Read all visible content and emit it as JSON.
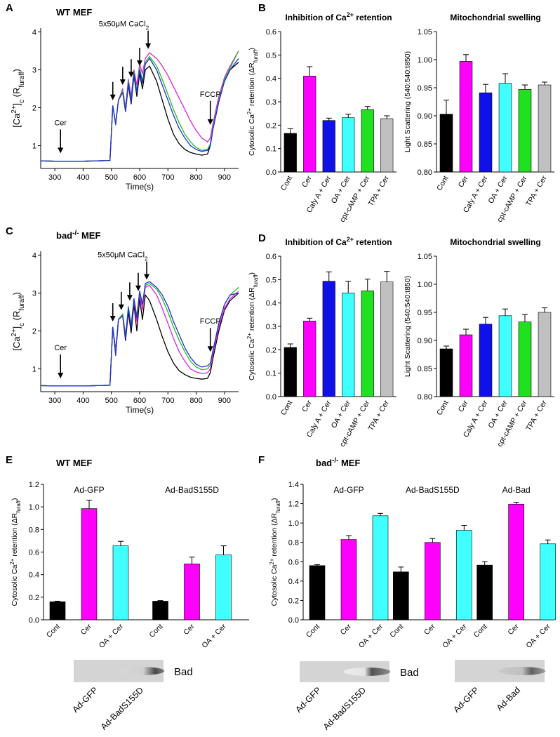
{
  "chart_data": [
    {
      "type": "line",
      "panel": "A",
      "title": "WT MEF",
      "x": [
        250,
        300,
        350,
        400,
        450,
        495,
        505,
        515,
        525,
        540,
        550,
        560,
        570,
        580,
        590,
        600,
        610,
        620,
        635,
        660,
        680,
        700,
        720,
        740,
        760,
        780,
        800,
        820,
        840,
        850,
        860,
        880,
        900,
        920,
        950
      ],
      "series": [
        {
          "color": "#000000",
          "values": [
            0.6,
            0.59,
            0.59,
            0.59,
            0.6,
            0.61,
            2.05,
            1.6,
            2.2,
            2.45,
            1.9,
            2.6,
            2.1,
            2.85,
            2.3,
            2.9,
            2.5,
            3.0,
            3.1,
            2.7,
            2.2,
            1.7,
            1.3,
            1.05,
            0.9,
            0.82,
            0.78,
            0.75,
            0.78,
            1.0,
            1.5,
            2.2,
            2.7,
            3.0,
            3.2
          ]
        },
        {
          "color": "#e020e0",
          "values": [
            0.6,
            0.59,
            0.59,
            0.59,
            0.6,
            0.61,
            2.05,
            1.6,
            2.2,
            2.5,
            2.0,
            2.75,
            2.3,
            3.0,
            2.6,
            3.15,
            2.9,
            3.3,
            3.45,
            3.3,
            3.1,
            2.85,
            2.55,
            2.25,
            1.95,
            1.65,
            1.4,
            1.2,
            1.1,
            1.2,
            1.6,
            2.3,
            2.8,
            3.1,
            3.5
          ]
        },
        {
          "color": "#20c020",
          "values": [
            0.6,
            0.59,
            0.59,
            0.59,
            0.6,
            0.61,
            2.05,
            1.6,
            2.2,
            2.45,
            1.95,
            2.7,
            2.2,
            2.95,
            2.45,
            3.05,
            2.7,
            3.2,
            3.35,
            3.1,
            2.75,
            2.35,
            1.95,
            1.6,
            1.3,
            1.1,
            0.95,
            0.88,
            0.9,
            1.05,
            1.5,
            2.2,
            2.75,
            3.05,
            3.5
          ]
        },
        {
          "color": "#2030d0",
          "values": [
            0.6,
            0.59,
            0.59,
            0.59,
            0.6,
            0.61,
            2.05,
            1.55,
            2.2,
            2.4,
            1.9,
            2.65,
            2.15,
            2.9,
            2.4,
            3.0,
            2.65,
            3.15,
            3.3,
            3.0,
            2.6,
            2.2,
            1.8,
            1.45,
            1.2,
            1.0,
            0.9,
            0.85,
            0.88,
            1.0,
            1.45,
            2.15,
            2.7,
            3.0,
            3.3
          ]
        }
      ],
      "xlim": [
        250,
        950
      ],
      "xticks": [
        300,
        400,
        500,
        600,
        700,
        800,
        900
      ],
      "ylim": [
        0.4,
        4.1
      ],
      "yticks": [
        1,
        2,
        3,
        4
      ],
      "x_label": "Time(s)",
      "y_label": [
        {
          "text": "[Ca"
        },
        {
          "text": "2+",
          "sup": true
        },
        {
          "text": "]"
        },
        {
          "text": "c",
          "sub": true
        },
        {
          "text": " (R"
        },
        {
          "text": "furaff",
          "sub": true
        },
        {
          "text": ")"
        }
      ],
      "annotations": [
        {
          "text": "Cer",
          "points": [
            [
              320,
              0.8
            ]
          ]
        },
        {
          "text": [
            {
              "text": "5x50μM CaCl"
            },
            {
              "text": "2",
              "sub": true
            }
          ],
          "points": [
            [
              505,
              2.2
            ],
            [
              540,
              2.6
            ],
            [
              570,
              2.8
            ],
            [
              600,
              3.1
            ],
            [
              630,
              3.55
            ]
          ]
        },
        {
          "text": "FCCP",
          "points": [
            [
              850,
              1.55
            ]
          ]
        }
      ]
    },
    {
      "type": "bar",
      "panel": "B",
      "title": [
        {
          "text": "Inhibition of Ca"
        },
        {
          "text": "2+",
          "sup": true
        },
        {
          "text": " retention"
        }
      ],
      "categories": [
        "Cont",
        "Cer",
        "Caly A + Cer",
        "OA + Cer",
        "cpt-cAMP + Cer",
        "TPA + Cer"
      ],
      "values": [
        0.165,
        0.41,
        0.22,
        0.232,
        0.267,
        0.228
      ],
      "errors": [
        0.02,
        0.04,
        0.01,
        0.015,
        0.013,
        0.012
      ],
      "colors": [
        "#000000",
        "#ff00ff",
        "#1010e8",
        "#40ffff",
        "#20e020",
        "#c0c0c0"
      ],
      "ylim": [
        0,
        0.6
      ],
      "yticks": [
        {
          "value": 0,
          "label": "0.0"
        },
        0.1,
        0.2,
        0.3,
        0.4,
        0.5,
        0.6
      ],
      "y_label": [
        {
          "text": "Cytosolic Ca"
        },
        {
          "text": "2+",
          "sup": true
        },
        {
          "text": " retention (ΔR"
        },
        {
          "text": "furaff",
          "sub": true
        },
        {
          "text": ")"
        }
      ]
    },
    {
      "type": "bar",
      "title": "Mitochondrial swelling",
      "categories": [
        "Cont",
        "Cer",
        "Caly A + Cer",
        "OA + Cer",
        "cpt-cAMP + Cer",
        "TPA + Cer"
      ],
      "values": [
        0.903,
        0.997,
        0.941,
        0.958,
        0.947,
        0.955
      ],
      "errors": [
        0.025,
        0.012,
        0.015,
        0.017,
        0.008,
        0.005
      ],
      "colors": [
        "#000000",
        "#ff00ff",
        "#1010e8",
        "#40ffff",
        "#20e020",
        "#c0c0c0"
      ],
      "ylim": [
        0.8,
        1.05
      ],
      "yticks": [
        {
          "value": 0.8,
          "label": "0.80"
        },
        0.85,
        {
          "value": 0.9,
          "label": "0.90"
        },
        0.95,
        {
          "value": 1,
          "label": "1.00"
        },
        1.05
      ],
      "y_label": "Light Scattering (540:540:t850)"
    },
    {
      "type": "line",
      "panel": "C",
      "title": [
        {
          "text": "bad"
        },
        {
          "text": "-/-",
          "sup": true
        },
        {
          "text": " MEF"
        }
      ],
      "x": [
        250,
        300,
        350,
        400,
        450,
        495,
        505,
        515,
        525,
        540,
        550,
        560,
        570,
        580,
        590,
        600,
        610,
        620,
        635,
        660,
        680,
        700,
        720,
        740,
        760,
        780,
        800,
        820,
        840,
        850,
        860,
        880,
        900,
        920,
        950
      ],
      "series": [
        {
          "color": "#000000",
          "values": [
            0.56,
            0.55,
            0.55,
            0.55,
            0.56,
            0.57,
            2.1,
            1.5,
            2.3,
            2.4,
            1.75,
            2.5,
            1.95,
            2.7,
            2.0,
            2.85,
            2.3,
            2.95,
            2.8,
            2.3,
            1.85,
            1.45,
            1.15,
            0.95,
            0.85,
            0.78,
            0.75,
            0.73,
            0.75,
            0.9,
            1.3,
            2.0,
            2.55,
            2.8,
            3.0
          ]
        },
        {
          "color": "#e020e0",
          "values": [
            0.56,
            0.55,
            0.55,
            0.55,
            0.56,
            0.57,
            2.1,
            1.45,
            2.3,
            2.45,
            1.9,
            2.6,
            2.1,
            2.8,
            2.25,
            3.0,
            2.55,
            3.15,
            3.2,
            2.95,
            2.6,
            2.2,
            1.8,
            1.45,
            1.2,
            1.0,
            0.92,
            0.88,
            0.9,
            1.0,
            1.4,
            2.1,
            2.6,
            2.85,
            3.05
          ]
        },
        {
          "color": "#20c020",
          "values": [
            0.56,
            0.55,
            0.55,
            0.55,
            0.56,
            0.57,
            2.1,
            1.4,
            2.3,
            2.45,
            1.85,
            2.65,
            2.15,
            2.85,
            2.4,
            3.05,
            2.7,
            3.2,
            3.25,
            3.1,
            2.85,
            2.5,
            2.1,
            1.75,
            1.45,
            1.2,
            1.05,
            0.98,
            1.0,
            1.1,
            1.5,
            2.2,
            2.7,
            2.95,
            3.15
          ]
        },
        {
          "color": "#2030d0",
          "values": [
            0.56,
            0.55,
            0.55,
            0.55,
            0.56,
            0.57,
            2.1,
            1.35,
            2.3,
            2.4,
            1.8,
            2.6,
            2.1,
            2.85,
            2.35,
            3.05,
            2.7,
            3.25,
            3.3,
            3.15,
            2.95,
            2.65,
            2.25,
            1.9,
            1.55,
            1.3,
            1.12,
            1.05,
            1.08,
            1.15,
            1.5,
            2.2,
            2.7,
            2.95,
            3.0
          ]
        }
      ],
      "xlim": [
        250,
        950
      ],
      "xticks": [
        300,
        400,
        500,
        600,
        700,
        800,
        900
      ],
      "ylim": [
        0.4,
        4.1
      ],
      "yticks": [
        1,
        2,
        3,
        4
      ],
      "x_label": "Time(s)",
      "y_label": [
        {
          "text": "[Ca"
        },
        {
          "text": "2+",
          "sup": true
        },
        {
          "text": "]"
        },
        {
          "text": "c",
          "sub": true
        },
        {
          "text": " (R"
        },
        {
          "text": "furaff",
          "sub": true
        },
        {
          "text": ")"
        }
      ],
      "annotations": [
        {
          "text": "Cer",
          "points": [
            [
              320,
              0.75
            ]
          ]
        },
        {
          "text": [
            {
              "text": "5x50μM CaCl"
            },
            {
              "text": "2",
              "sub": true
            }
          ],
          "points": [
            [
              505,
              2.25
            ],
            [
              535,
              2.55
            ],
            [
              565,
              2.8
            ],
            [
              595,
              3.05
            ],
            [
              625,
              3.35
            ]
          ]
        },
        {
          "text": "FCCP",
          "points": [
            [
              850,
              1.45
            ]
          ]
        }
      ]
    },
    {
      "type": "bar",
      "panel": "D",
      "title": [
        {
          "text": "Inhibition of Ca"
        },
        {
          "text": "2+",
          "sup": true
        },
        {
          "text": " retention"
        }
      ],
      "categories": [
        "Cont",
        "Cer",
        "Caly A + Cer",
        "OA + Cer",
        "cpt-cAMP + Cer",
        "TPA + Cer"
      ],
      "values": [
        0.21,
        0.323,
        0.493,
        0.443,
        0.452,
        0.49
      ],
      "errors": [
        0.015,
        0.012,
        0.04,
        0.05,
        0.05,
        0.045
      ],
      "colors": [
        "#000000",
        "#ff00ff",
        "#1010e8",
        "#40ffff",
        "#20e020",
        "#c0c0c0"
      ],
      "ylim": [
        0,
        0.6
      ],
      "yticks": [
        {
          "value": 0,
          "label": "0.0"
        },
        0.1,
        0.2,
        0.3,
        0.4,
        0.5,
        0.6
      ],
      "y_label": [
        {
          "text": "Cytosolic Ca"
        },
        {
          "text": "2+",
          "sup": true
        },
        {
          "text": " retention (ΔR"
        },
        {
          "text": "furaff",
          "sub": true
        },
        {
          "text": ")"
        }
      ]
    },
    {
      "type": "bar",
      "title": "Mitochondrial swelling",
      "categories": [
        "Cont",
        "Cer",
        "Caly A + Cer",
        "OA + Cer",
        "cpt-cAMP + Cer",
        "TPA + Cer"
      ],
      "values": [
        0.885,
        0.91,
        0.929,
        0.944,
        0.933,
        0.95
      ],
      "errors": [
        0.005,
        0.01,
        0.012,
        0.012,
        0.013,
        0.008
      ],
      "colors": [
        "#000000",
        "#ff00ff",
        "#1010e8",
        "#40ffff",
        "#20e020",
        "#c0c0c0"
      ],
      "ylim": [
        0.8,
        1.05
      ],
      "yticks": [
        {
          "value": 0.8,
          "label": "0.80"
        },
        0.85,
        {
          "value": 0.9,
          "label": "0.90"
        },
        0.95,
        {
          "value": 1,
          "label": "1.00"
        },
        1.05
      ],
      "y_label": "Light Scattering (540:540:t850)"
    },
    {
      "type": "grouped_bar",
      "panel": "E",
      "title": "WT MEF",
      "categories": [
        "Cont",
        "Cer",
        "OA + Cer"
      ],
      "colors": [
        "#000000",
        "#ff00ff",
        "#40ffff"
      ],
      "groups": [
        {
          "name": "Ad-GFP",
          "values": [
            0.16,
            0.985,
            0.655
          ],
          "errors": [
            0.005,
            0.075,
            0.04
          ]
        },
        {
          "name": "Ad-BadS155D",
          "values": [
            0.165,
            0.495,
            0.575
          ],
          "errors": [
            0.005,
            0.06,
            0.08
          ]
        }
      ],
      "ylim": [
        0,
        1.2
      ],
      "yticks": [
        {
          "value": 0,
          "label": "0.0"
        },
        0.2,
        0.4,
        0.6,
        0.8,
        {
          "value": 1,
          "label": "1.0"
        },
        1.2
      ],
      "y_label": [
        {
          "text": "Cytosolic Ca"
        },
        {
          "text": "2+",
          "sup": true
        },
        {
          "text": " retention (ΔR"
        },
        {
          "text": "furaff",
          "sub": true
        },
        {
          "text": ")"
        }
      ]
    },
    {
      "type": "grouped_bar",
      "panel": "F",
      "title": [
        {
          "text": "bad"
        },
        {
          "text": "-/-",
          "sup": true
        },
        {
          "text": " MEF"
        }
      ],
      "categories": [
        "Cont",
        "Cer",
        "OA + Cer"
      ],
      "colors": [
        "#000000",
        "#ff00ff",
        "#40ffff"
      ],
      "groups": [
        {
          "name": "Ad-GFP",
          "values": [
            0.56,
            0.83,
            1.075
          ],
          "errors": [
            0.01,
            0.04,
            0.025
          ]
        },
        {
          "name": "Ad-BadS155D",
          "values": [
            0.495,
            0.8,
            0.925
          ],
          "errors": [
            0.05,
            0.04,
            0.05
          ]
        },
        {
          "name": "Ad-Bad",
          "values": [
            0.565,
            1.195,
            0.785
          ],
          "errors": [
            0.035,
            0.02,
            0.04
          ]
        }
      ],
      "ylim": [
        0,
        1.4
      ],
      "yticks": [
        {
          "value": 0,
          "label": "0.0"
        },
        0.2,
        0.4,
        0.6,
        0.8,
        {
          "value": 1,
          "label": "1.0"
        },
        1.2,
        1.4
      ],
      "y_label": [
        {
          "text": "Cytosolic Ca"
        },
        {
          "text": "2+",
          "sup": true
        },
        {
          "text": " retention (ΔR"
        },
        {
          "text": "furaff",
          "sub": true
        },
        {
          "text": ")"
        }
      ]
    }
  ],
  "blots": [
    {
      "label": "Bad",
      "lanes": [
        "Ad-GFP",
        "Ad-BadS155D"
      ]
    },
    {
      "label": "Bad",
      "lanes": [
        "Ad-GFP",
        "Ad-BadS155D"
      ]
    },
    {
      "lanes": [
        "Ad-GFP",
        "Ad-Bad"
      ]
    }
  ]
}
